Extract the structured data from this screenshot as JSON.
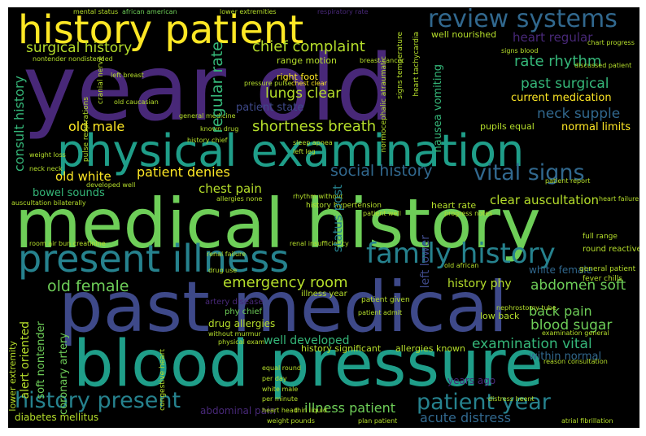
{
  "palette": {
    "yellow": "#fde725",
    "lime": "#b5de2b",
    "green": "#6ece58",
    "teal_green": "#35b779",
    "teal": "#1f9e89",
    "cyan_blue": "#26828e",
    "blue": "#31688e",
    "indigo": "#3e4989",
    "purple": "#482878",
    "dark": "#440154"
  },
  "words": {
    "year_old": "year old",
    "medical_history": "medical history",
    "past_medical": "past medical",
    "blood_pressure": "blood pressure",
    "physical_examination": "physical examination",
    "history_patient": "history patient",
    "present_illness": "present illness",
    "family_history": "family history",
    "review_systems": "review systems",
    "history_present": "history present",
    "patient_year": "patient year",
    "vital_signs": "vital signs",
    "social_history": "social history",
    "surgical_history": "surgical history",
    "chief_complaint": "chief complaint",
    "old_female": "old female",
    "emergency_room": "emergency room",
    "shortness_breath": "shortness breath",
    "lungs_clear": "lungs clear",
    "old_male": "old male",
    "patient_denies": "patient denies",
    "chest_pain": "chest pain",
    "old_white": "old white",
    "rate_rhythm": "rate rhythm",
    "past_surgical": "past surgical",
    "neck_supple": "neck supple",
    "heart_regular": "heart regular",
    "current_medication": "current medication",
    "normal_limits": "normal limits",
    "clear_auscultation": "clear auscultation",
    "abdomen_soft": "abdomen soft",
    "back_pain": "back pain",
    "blood_sugar": "blood sugar",
    "examination_vital": "examination vital",
    "illness_patient": "illness patient",
    "acute_distress": "acute distress",
    "history_phy": "history phy",
    "white_female": "white female",
    "regular_rate": "regular rate",
    "consult_history": "consult history",
    "bowel_sounds": "bowel sounds",
    "well_developed": "well developed",
    "history_significant": "history significant",
    "allergies_known": "allergies known",
    "within_normal": "within normal",
    "years_ago": "years ago",
    "low_back": "low back",
    "abdominal_pain": "abdominal pain",
    "diabetes_mellitus": "diabetes mellitus",
    "patient_state": "patient state",
    "range_motion": "range motion",
    "right_foot": "right foot",
    "well_nourished": "well nourished",
    "nausea_vomiting": "nausea vomiting",
    "status_post": "status post",
    "left_lower": "left lower",
    "alert_oriented": "alert oriented",
    "soft_nontender": "soft nontender",
    "lower_extremity": "lower extremity",
    "coronary_artery": "coronary artery",
    "drug_allergies": "drug allergies",
    "heart_rate": "heart rate",
    "history_hypertension": "history hypertension",
    "artery_disease": "artery disease",
    "phy_chief": "phy chief",
    "illness_year": "illness year",
    "patient_given": "patient given",
    "general_patient": "general patient",
    "fever_chills": "fever chills",
    "round_reactive": "round reactive",
    "full_range": "full range",
    "pupils_equal": "pupils equal",
    "mental_status": "mental status",
    "african_american": "african american",
    "lower_extremities": "lower extremities",
    "respiratory_rate": "respiratory rate",
    "signs_blood": "signs blood",
    "chest_clear": "chest clear",
    "left_breast": "left breast",
    "old_caucasian": "old caucasian",
    "pressure_pulse": "pressure pulse",
    "general_medicine": "general medicine",
    "left_leg": "left leg",
    "sleep_apnea": "sleep apnea",
    "weight_loss": "weight loss",
    "neck_neck": "neck neck",
    "developed_well": "developed well",
    "rhythm_without": "rhythm without",
    "patient_well": "patient well",
    "room_air": "room air",
    "bun_creatinine": "bun creatinine",
    "renal_failure": "renal failure",
    "renal_insufficiency": "renal insufficiency",
    "without_murmur": "without murmur",
    "physical_exam": "physical exam",
    "drug_use": "drug use",
    "progress_notes": "progress notes",
    "atrial_fibrillation": "atrial fibrillation",
    "plan_patient": "plan patient",
    "weight_pounds": "weight pounds",
    "distress_heent": "distress heent",
    "nephrostomy_tube": "nephrostomy tube",
    "old_african": "old african",
    "per_day": "per day",
    "per_minute": "per minute",
    "heart_head": "heart head",
    "equal_round": "equal round",
    "congestive_heart": "congestive heart",
    "reason_consultation": "reason consultation",
    "examination_general": "examination general",
    "discussed_patient": "discussed patient",
    "chart_progress": "chart progress",
    "cranial_nerve": "cranial nerve",
    "breast_cancer": "breast cancer",
    "nontender_nondistended": "nontender nondistended",
    "known_drug": "known drug",
    "pulse_respirations": "pulse respirations",
    "auscultation_bilaterally": "auscultation bilaterally",
    "patient_report": "patient report",
    "heart_failure": "heart failure",
    "history_chief": "history chief",
    "allergies_none": "allergies none",
    "patient_admit": "patient admit",
    "thin_liquid": "thin liquid",
    "white_male": "white male",
    "signs_temperature": "signs temperature",
    "heart_tachycardia": "heart tachycardia",
    "normocephalic_atraumatic": "normocephalic atraumatic"
  }
}
